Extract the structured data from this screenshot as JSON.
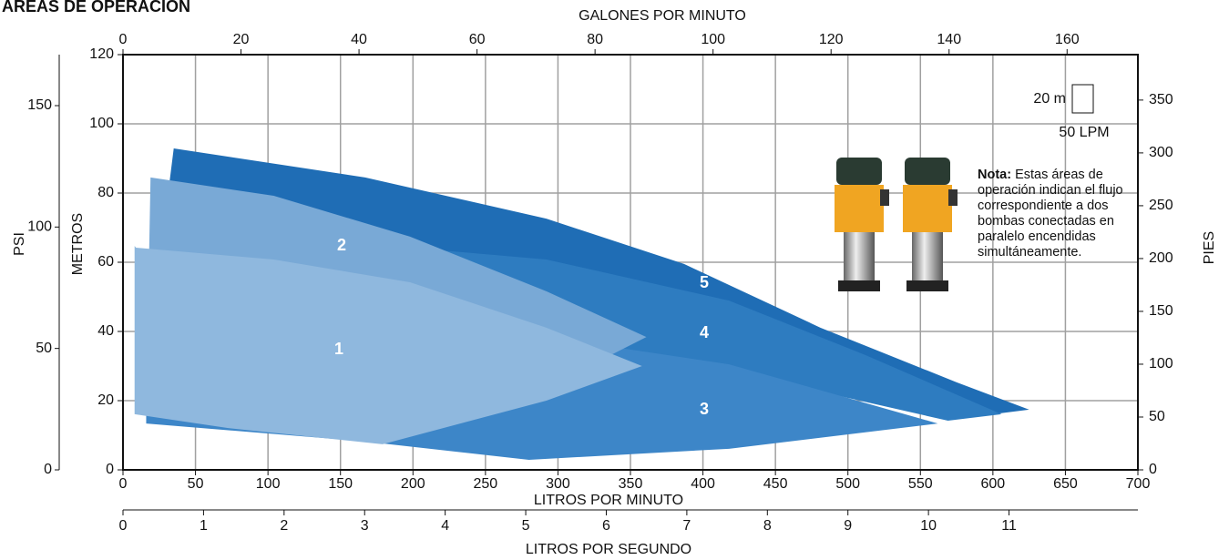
{
  "chart_data": {
    "type": "area",
    "title": "ÁREAS DE OPERACIÓN",
    "x_label": "LITROS POR MINUTO",
    "xlim": [
      0,
      700
    ],
    "xticks": [
      0,
      50,
      100,
      150,
      200,
      250,
      300,
      350,
      400,
      450,
      500,
      550,
      600,
      650,
      700
    ],
    "y_label": "METROS",
    "ylim": [
      0,
      120
    ],
    "yticks": [
      0,
      20,
      40,
      60,
      80,
      100,
      120
    ],
    "grid": true,
    "x2_label": "GALONES POR MINUTO",
    "x2lim": [
      0,
      172
    ],
    "x2ticks": [
      0,
      20,
      40,
      60,
      80,
      100,
      120,
      140,
      160
    ],
    "x3_label": "LITROS POR SEGUNDO",
    "x3lim": [
      0,
      12.6
    ],
    "x3ticks": [
      0,
      1,
      2,
      3,
      4,
      5,
      6,
      7,
      8,
      9,
      10,
      11
    ],
    "y3_label": "PSI",
    "y3lim": [
      0,
      171
    ],
    "y3ticks": [
      0,
      50,
      100,
      150
    ],
    "y2_label": "PIES",
    "y2lim": [
      0,
      393
    ],
    "y2ticks": [
      0,
      50,
      100,
      150,
      200,
      250,
      300,
      350
    ],
    "series": [
      {
        "name": "5",
        "color": "#1f6db5",
        "x": [
          35,
          167,
          292,
          387,
          481,
          575,
          625,
          600,
          512,
          418,
          292,
          167,
          25
        ],
        "values": [
          92.9,
          84.5,
          72.6,
          59.5,
          41.1,
          25.3,
          17.4,
          16.1,
          25.3,
          39.7,
          56.8,
          67.4,
          59.5
        ]
      },
      {
        "name": "4",
        "color": "#2e7cc0",
        "x": [
          185,
          292,
          418,
          512,
          606,
          569,
          481,
          387,
          292,
          185
        ],
        "values": [
          64.7,
          60.8,
          48.9,
          33.2,
          16.1,
          14.2,
          22.6,
          30.5,
          35.8,
          41.1
        ]
      },
      {
        "name": "3",
        "color": "#3d86c8",
        "x": [
          16,
          292,
          418,
          562,
          418,
          280,
          167,
          16
        ],
        "values": [
          56.8,
          38.4,
          30.5,
          13.4,
          6.1,
          2.9,
          8.2,
          13.4
        ]
      },
      {
        "name": "2",
        "color": "#79a9d6",
        "x": [
          19,
          104,
          198,
          292,
          361,
          330,
          229,
          104,
          16
        ],
        "values": [
          84.5,
          79.2,
          67.4,
          51.6,
          38.4,
          31.8,
          22.6,
          16.1,
          17.4
        ]
      },
      {
        "name": "1",
        "color": "#8fb8de",
        "x": [
          9,
          104,
          198,
          292,
          358,
          292,
          179,
          72,
          8,
          8
        ],
        "values": [
          64.2,
          60.8,
          54.2,
          41.1,
          30,
          20,
          7.4,
          12.1,
          16.1,
          64.7
        ]
      }
    ],
    "scale_box": {
      "height_label": "20 m",
      "width_label": "50 LPM"
    },
    "note": {
      "heading": "Nota:",
      "text": "Estas áreas de operación indican el flujo correspondiente a dos bombas conectadas en paralelo encendidas simultáneamente."
    }
  }
}
